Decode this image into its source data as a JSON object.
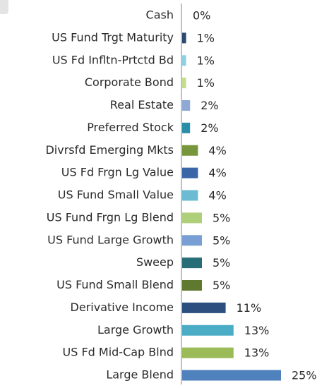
{
  "chart_data": {
    "type": "barh",
    "categories": [
      "Cash",
      "US Fund Trgt Maturity",
      "US Fd Infltn-Prtctd Bd",
      "Corporate Bond",
      "Real Estate",
      "Preferred Stock",
      "Divrsfd Emerging Mkts",
      "US Fd Frgn Lg Value",
      "US Fund Small Value",
      "US Fund Frgn Lg Blend",
      "US Fund Large Growth",
      "Sweep",
      "US Fund Small Blend",
      "Derivative Income",
      "Large Growth",
      "US Fd Mid-Cap Blnd",
      "Large Blend"
    ],
    "values": [
      0,
      1,
      1,
      1,
      2,
      2,
      4,
      4,
      4,
      5,
      5,
      5,
      5,
      11,
      13,
      13,
      25
    ],
    "value_labels": [
      "0%",
      "1%",
      "1%",
      "1%",
      "2%",
      "2%",
      "4%",
      "4%",
      "4%",
      "5%",
      "5%",
      "5%",
      "5%",
      "11%",
      "13%",
      "13%",
      "25%"
    ],
    "colors": [
      "#4f81bd",
      "#2b4a6f",
      "#8fd0e0",
      "#c5dc8c",
      "#8fa9d6",
      "#2a8fa5",
      "#77963c",
      "#3a66a8",
      "#6bbcd3",
      "#b0cf7a",
      "#7a9fd4",
      "#276d78",
      "#5f7a2f",
      "#2d4f80",
      "#4bacc6",
      "#9bbb59",
      "#4f81bd"
    ]
  }
}
